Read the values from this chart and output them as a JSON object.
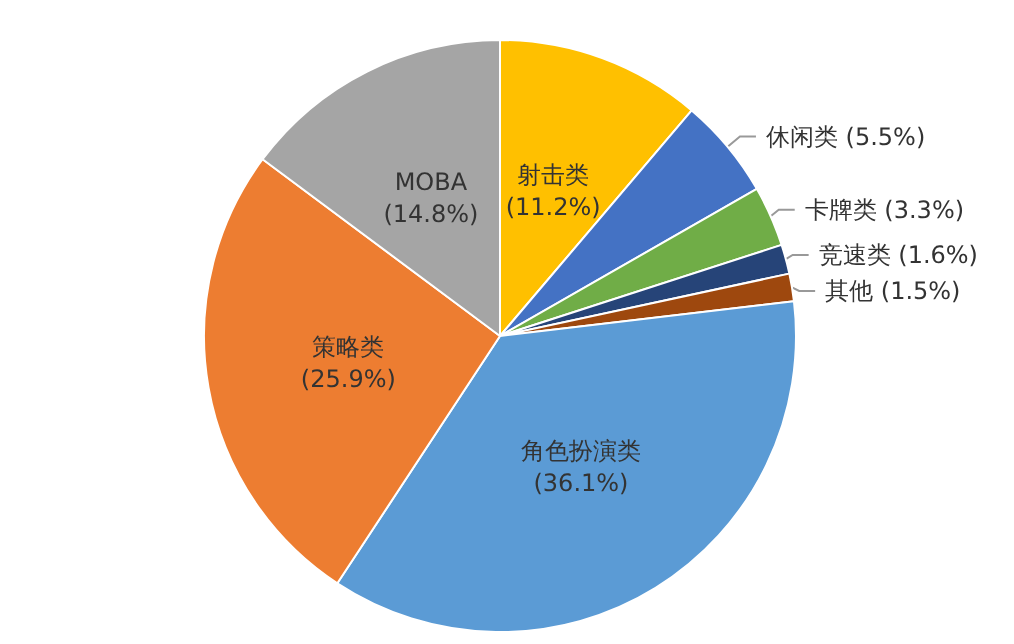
{
  "chart_data": {
    "type": "pie",
    "categories": [
      "射击类",
      "休闲类",
      "卡牌类",
      "竞速类",
      "其他",
      "角色扮演类",
      "策略类",
      "MOBA"
    ],
    "values": [
      11.2,
      5.5,
      3.3,
      1.6,
      1.5,
      36.1,
      25.9,
      14.8
    ],
    "colors": [
      "#ffc000",
      "#4472c4",
      "#70ad47",
      "#264478",
      "#9e480e",
      "#5b9bd5",
      "#ed7d31",
      "#a5a5a5"
    ],
    "value_labels": [
      "(11.2%)",
      "(5.5%)",
      "(3.3%)",
      "(1.6%)",
      "(1.5%)",
      "(36.1%)",
      "(25.9%)",
      "(14.8%)"
    ],
    "legend": false
  }
}
